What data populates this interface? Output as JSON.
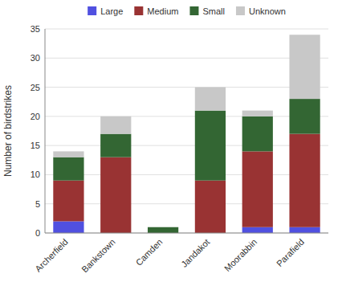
{
  "chart_data": {
    "type": "bar",
    "stacked": true,
    "categories": [
      "Archerfield",
      "Bankstown",
      "Camden",
      "Jandakot",
      "Moorabbin",
      "Parafield"
    ],
    "series": [
      {
        "name": "Large",
        "color": "#5050e0",
        "values": [
          2,
          0,
          0,
          0,
          1,
          1
        ]
      },
      {
        "name": "Medium",
        "color": "#993333",
        "values": [
          7,
          13,
          0,
          9,
          13,
          16
        ]
      },
      {
        "name": "Small",
        "color": "#336633",
        "values": [
          4,
          4,
          1,
          12,
          6,
          6
        ]
      },
      {
        "name": "Unknown",
        "color": "#c8c8c8",
        "values": [
          1,
          3,
          0,
          4,
          1,
          11
        ]
      }
    ],
    "ylabel": "Number of birdstrikes",
    "ylim": [
      0,
      35
    ],
    "yticks": [
      0,
      5,
      10,
      15,
      20,
      25,
      30,
      35
    ],
    "grid": true,
    "legend": "top"
  }
}
